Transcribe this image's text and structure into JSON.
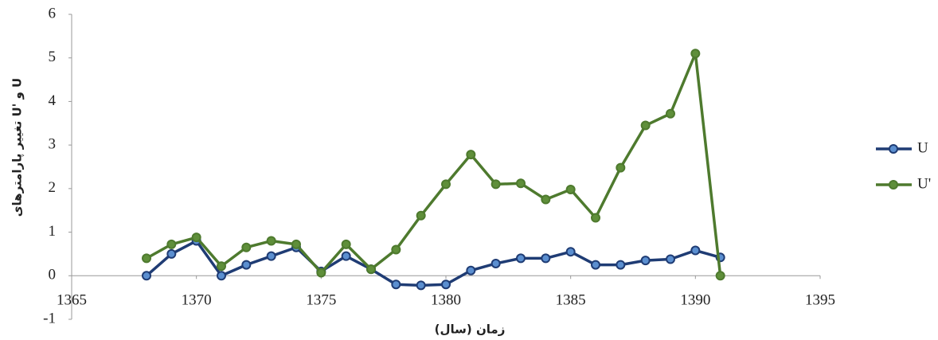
{
  "chart_data": {
    "type": "line",
    "x_label": "زمان (سال)",
    "y_label": "تغییر پارامترهای U' و U",
    "x": [
      1368,
      1369,
      1370,
      1371,
      1372,
      1373,
      1374,
      1375,
      1376,
      1377,
      1378,
      1379,
      1380,
      1381,
      1382,
      1383,
      1384,
      1385,
      1386,
      1387,
      1388,
      1389,
      1390,
      1391
    ],
    "series": [
      {
        "name": "U",
        "color": "#1f3c74",
        "marker_fill": "#5b8fd0",
        "values": [
          0,
          0.5,
          0.8,
          0,
          0.25,
          0.45,
          0.65,
          0.1,
          0.45,
          0.15,
          -0.2,
          -0.22,
          -0.2,
          0.12,
          0.28,
          0.4,
          0.4,
          0.55,
          0.25,
          0.25,
          0.35,
          0.38,
          0.58,
          0.42
        ]
      },
      {
        "name": "U'",
        "color": "#4e7a2e",
        "marker_fill": "#5f8f3a",
        "values": [
          0.4,
          0.72,
          0.88,
          0.22,
          0.65,
          0.8,
          0.72,
          0.07,
          0.72,
          0.15,
          0.6,
          1.38,
          2.1,
          2.78,
          2.1,
          2.12,
          1.75,
          1.98,
          1.33,
          2.48,
          3.45,
          3.72,
          5.1,
          0
        ]
      }
    ],
    "xlim": [
      1365,
      1395
    ],
    "xticks": [
      1365,
      1370,
      1375,
      1380,
      1385,
      1390,
      1395
    ],
    "ylim": [
      -1,
      6
    ],
    "yticks": [
      -1,
      0,
      1,
      2,
      3,
      4,
      5,
      6
    ],
    "legend": "right",
    "grid": false
  }
}
